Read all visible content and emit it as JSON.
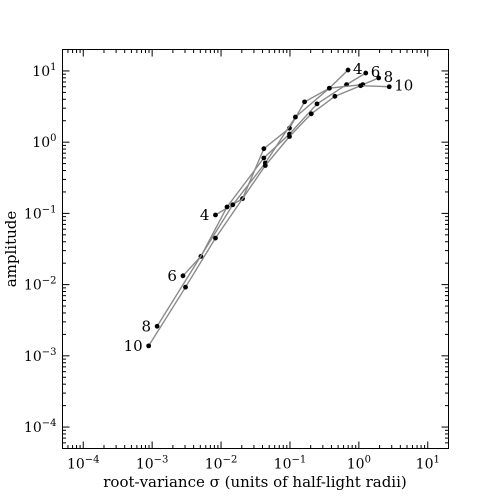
{
  "chart_data": {
    "type": "line",
    "xlabel": "root-variance σ (units of half-light radii)",
    "ylabel": "amplitude",
    "xscale": "log",
    "yscale": "log",
    "xlim": [
      5e-05,
      20
    ],
    "ylim": [
      5e-05,
      20
    ],
    "xticks": [
      {
        "value": 0.0001,
        "base": "10",
        "exp": "−4"
      },
      {
        "value": 0.001,
        "base": "10",
        "exp": "−3"
      },
      {
        "value": 0.01,
        "base": "10",
        "exp": "−2"
      },
      {
        "value": 0.1,
        "base": "10",
        "exp": "−1"
      },
      {
        "value": 1,
        "base": "10",
        "exp": "0"
      },
      {
        "value": 10,
        "base": "10",
        "exp": "1"
      }
    ],
    "yticks": [
      {
        "value": 0.0001,
        "base": "10",
        "exp": "−4"
      },
      {
        "value": 0.001,
        "base": "10",
        "exp": "−3"
      },
      {
        "value": 0.01,
        "base": "10",
        "exp": "−2"
      },
      {
        "value": 0.1,
        "base": "10",
        "exp": "−1"
      },
      {
        "value": 1,
        "base": "10",
        "exp": "0"
      },
      {
        "value": 10,
        "base": "10",
        "exp": "1"
      }
    ],
    "grid": false,
    "series": [
      {
        "labels": {
          "start": "4",
          "end": "4"
        },
        "x": [
          0.0083,
          0.0205,
          0.0418,
          0.0984,
          0.163,
          0.373,
          0.697
        ],
        "y": [
          0.095,
          0.161,
          0.81,
          1.57,
          3.68,
          5.72,
          10.3
        ]
      },
      {
        "labels": {
          "start": "6",
          "end": "6"
        },
        "x": [
          0.0028,
          0.0051,
          0.0122,
          0.0418,
          0.0984,
          0.247,
          0.663,
          1.26
        ],
        "y": [
          0.0133,
          0.0249,
          0.123,
          0.6,
          1.3,
          3.45,
          6.43,
          9.35
        ]
      },
      {
        "labels": {
          "start": "8",
          "end": "8"
        },
        "x": [
          0.00118,
          0.0148,
          0.0439,
          0.12,
          0.373,
          1.14,
          1.94
        ],
        "y": [
          0.0026,
          0.132,
          0.51,
          2.25,
          5.72,
          6.43,
          7.98
        ]
      },
      {
        "labels": {
          "start": "10",
          "end": "10"
        },
        "x": [
          0.00089,
          0.00305,
          0.0083,
          0.0439,
          0.0984,
          0.204,
          0.449,
          1.06,
          2.76
        ],
        "y": [
          0.00138,
          0.0092,
          0.045,
          0.47,
          1.2,
          2.5,
          4.4,
          6.2,
          6.0
        ]
      }
    ]
  }
}
